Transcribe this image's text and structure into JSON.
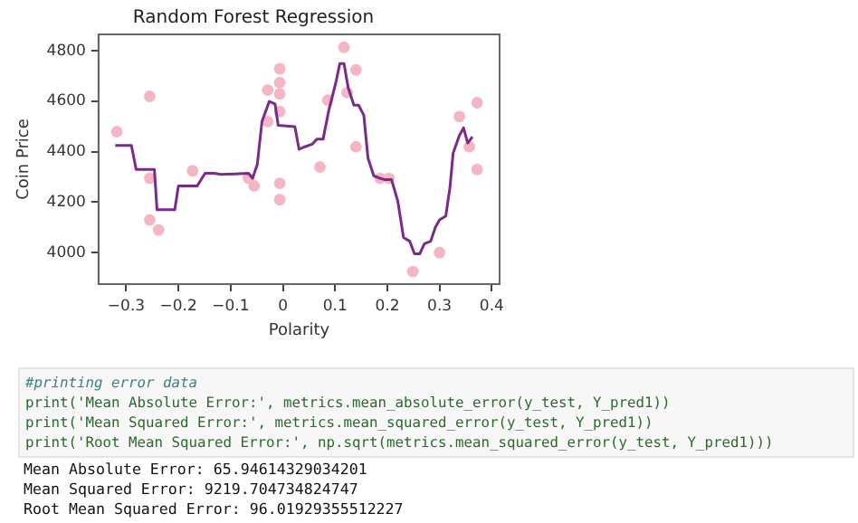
{
  "chart_data": {
    "type": "scatter",
    "title": "Random Forest Regression",
    "xlabel": "Polarity",
    "ylabel": "Coin Price",
    "xlim": [
      -0.353,
      0.415
    ],
    "xticks": [
      {
        "value": -0.3,
        "label": "−0.3"
      },
      {
        "value": -0.2,
        "label": "−0.2"
      },
      {
        "value": -0.1,
        "label": "−0.1"
      },
      0.0,
      0.1,
      0.2,
      0.3,
      0.4
    ],
    "ylim": [
      3875,
      4866
    ],
    "yticks": [
      4000,
      4200,
      4400,
      4600,
      4800
    ],
    "grid": false,
    "legend": false,
    "series": [
      {
        "color": "#f4b6c2",
        "marker": "circle",
        "x": [
          -0.318,
          -0.255,
          -0.255,
          -0.255,
          -0.238,
          -0.173,
          -0.066,
          -0.055,
          -0.029,
          -0.029,
          -0.006,
          -0.006,
          -0.006,
          -0.006,
          -0.006,
          -0.006,
          0.071,
          0.086,
          0.117,
          0.123,
          0.14,
          0.14,
          0.186,
          0.203,
          0.249,
          0.3,
          0.338,
          0.357,
          0.372,
          0.372
        ],
        "values": [
          4480,
          4620,
          4295,
          4130,
          4090,
          4325,
          4295,
          4265,
          4645,
          4520,
          4730,
          4675,
          4630,
          4560,
          4275,
          4210,
          4340,
          4605,
          4815,
          4635,
          4725,
          4420,
          4295,
          4295,
          3925,
          4000,
          4540,
          4420,
          4595,
          4330
        ]
      },
      {
        "type": "line",
        "color": "#7b2a8c",
        "marker": "none",
        "line_style": "solid",
        "x": [
          -0.321,
          -0.29,
          -0.281,
          -0.246,
          -0.241,
          -0.207,
          -0.2,
          -0.164,
          -0.149,
          -0.132,
          -0.118,
          -0.066,
          -0.058,
          -0.049,
          -0.04,
          -0.026,
          -0.015,
          -0.009,
          0.023,
          0.031,
          0.042,
          0.056,
          0.065,
          0.077,
          0.088,
          0.102,
          0.109,
          0.117,
          0.125,
          0.136,
          0.145,
          0.155,
          0.163,
          0.174,
          0.186,
          0.194,
          0.208,
          0.22,
          0.231,
          0.243,
          0.252,
          0.262,
          0.271,
          0.283,
          0.292,
          0.3,
          0.312,
          0.32,
          0.326,
          0.338,
          0.346,
          0.354,
          0.363
        ],
        "values": [
          4425,
          4425,
          4330,
          4330,
          4170,
          4170,
          4265,
          4265,
          4315,
          4315,
          4310,
          4315,
          4295,
          4350,
          4520,
          4600,
          4590,
          4505,
          4500,
          4410,
          4420,
          4430,
          4450,
          4450,
          4565,
          4680,
          4750,
          4750,
          4655,
          4585,
          4585,
          4545,
          4375,
          4305,
          4295,
          4290,
          4290,
          4205,
          4060,
          4045,
          3995,
          3995,
          4035,
          4045,
          4100,
          4130,
          4145,
          4260,
          4395,
          4465,
          4495,
          4435,
          4460
        ]
      }
    ],
    "annotations": [
      "#printing error data",
      "print('Mean Absolute Error:', metrics.mean_absolute_error(y_test, Y_pred1))",
      "print('Mean Squared Error:', metrics.mean_squared_error(y_test, Y_pred1))",
      "print('Root Mean Squared Error:', np.sqrt(metrics.mean_squared_error(y_test, Y_pred1)))",
      "Mean Absolute Error: 65.94614329034201",
      "Mean Squared Error: 9219.704734824747",
      "Root Mean Squared Error: 96.01929355512227"
    ]
  }
}
